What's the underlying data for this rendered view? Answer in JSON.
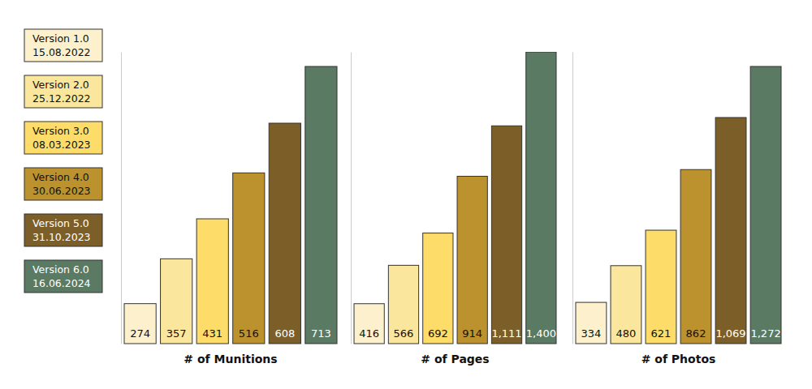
{
  "legend": {
    "entries": [
      {
        "name": "Version 1.0",
        "date": "15.08.2022",
        "color": "#fdf0cc"
      },
      {
        "name": "Version 2.0",
        "date": "25.12.2022",
        "color": "#fae69d"
      },
      {
        "name": "Version 3.0",
        "date": "08.03.2023",
        "color": "#fddc6a"
      },
      {
        "name": "Version 4.0",
        "date": "30.06.2023",
        "color": "#bc922e"
      },
      {
        "name": "Version 5.0",
        "date": "31.10.2023",
        "color": "#7c5f28"
      },
      {
        "name": "Version 6.0",
        "date": "16.06.2024",
        "color": "#5a7a64"
      }
    ]
  },
  "chart_data": [
    {
      "type": "bar",
      "xlabel": "# of Munitions",
      "values": [
        274,
        357,
        431,
        516,
        608,
        713
      ],
      "ylim": [
        200,
        740
      ],
      "yticks": [],
      "tick_labels": false,
      "data_labels": true
    },
    {
      "type": "bar",
      "xlabel": "# of Pages",
      "values": [
        416,
        566,
        692,
        914,
        1111,
        1400
      ],
      "value_labels": [
        "416",
        "566",
        "692",
        "914",
        "1,111",
        "1,400"
      ],
      "ylim": [
        260,
        1400
      ],
      "yticks": [],
      "tick_labels": false,
      "data_labels": true
    },
    {
      "type": "bar",
      "xlabel": "# of Photos",
      "values": [
        334,
        480,
        621,
        862,
        1069,
        1272
      ],
      "value_labels": [
        "334",
        "480",
        "621",
        "862",
        "1,069",
        "1,272"
      ],
      "ylim": [
        170,
        1330
      ],
      "yticks": [],
      "tick_labels": false,
      "data_labels": true
    }
  ]
}
